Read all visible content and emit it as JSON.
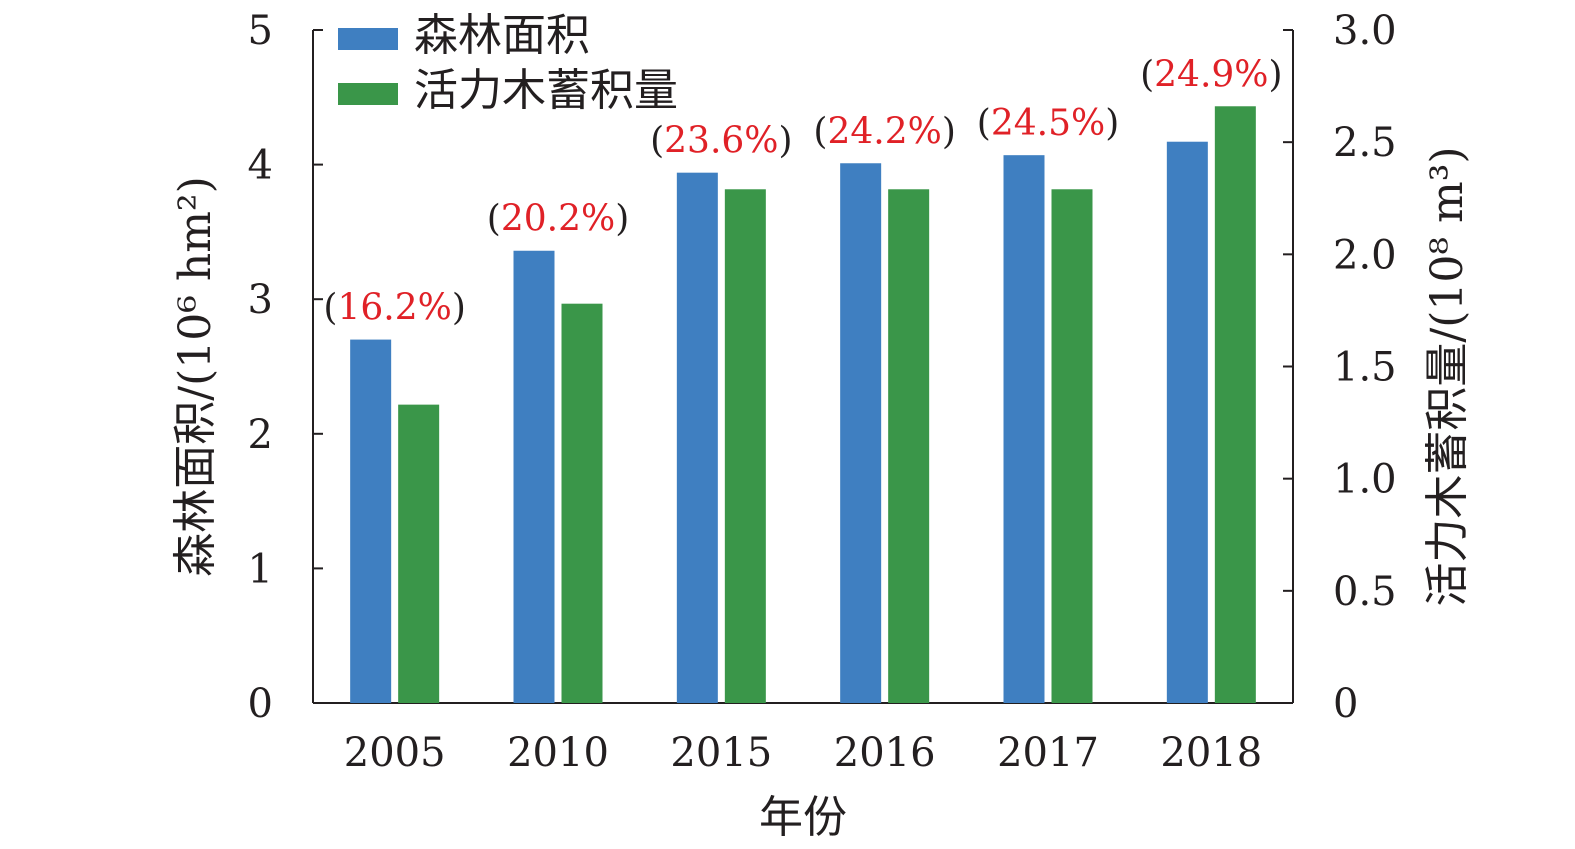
{
  "chart_data": {
    "type": "bar",
    "categories": [
      "2005",
      "2010",
      "2015",
      "2016",
      "2017",
      "2018"
    ],
    "series": [
      {
        "name": "森林面积",
        "axis": "left",
        "color": "#3f7fc1",
        "values": [
          2.7,
          3.36,
          3.94,
          4.01,
          4.07,
          4.17
        ]
      },
      {
        "name": "活力木蓄积量",
        "axis": "right",
        "color": "#3a9649",
        "values": [
          1.33,
          1.78,
          2.29,
          2.29,
          2.29,
          2.66
        ]
      }
    ],
    "annotations": [
      "(16.2%)",
      "(20.2%)",
      "(23.6%)",
      "(24.2%)",
      "(24.5%)",
      "(24.9%)"
    ],
    "annotation_color": "#e02127",
    "annotation_paren_color": "#231f20",
    "xlabel": "年份",
    "ylabel": "森林面积/(10⁶ hm²)",
    "y2label": "活力木蓄积量/(10⁸ m³)",
    "ylim": [
      0,
      5
    ],
    "y2lim": [
      0,
      3.0
    ],
    "yticks": [
      "0",
      "1",
      "2",
      "3",
      "4",
      "5"
    ],
    "y2ticks": [
      "0",
      "0.5",
      "1.0",
      "1.5",
      "2.0",
      "2.5",
      "3.0"
    ],
    "grid": false,
    "legend_position": "top-left"
  }
}
